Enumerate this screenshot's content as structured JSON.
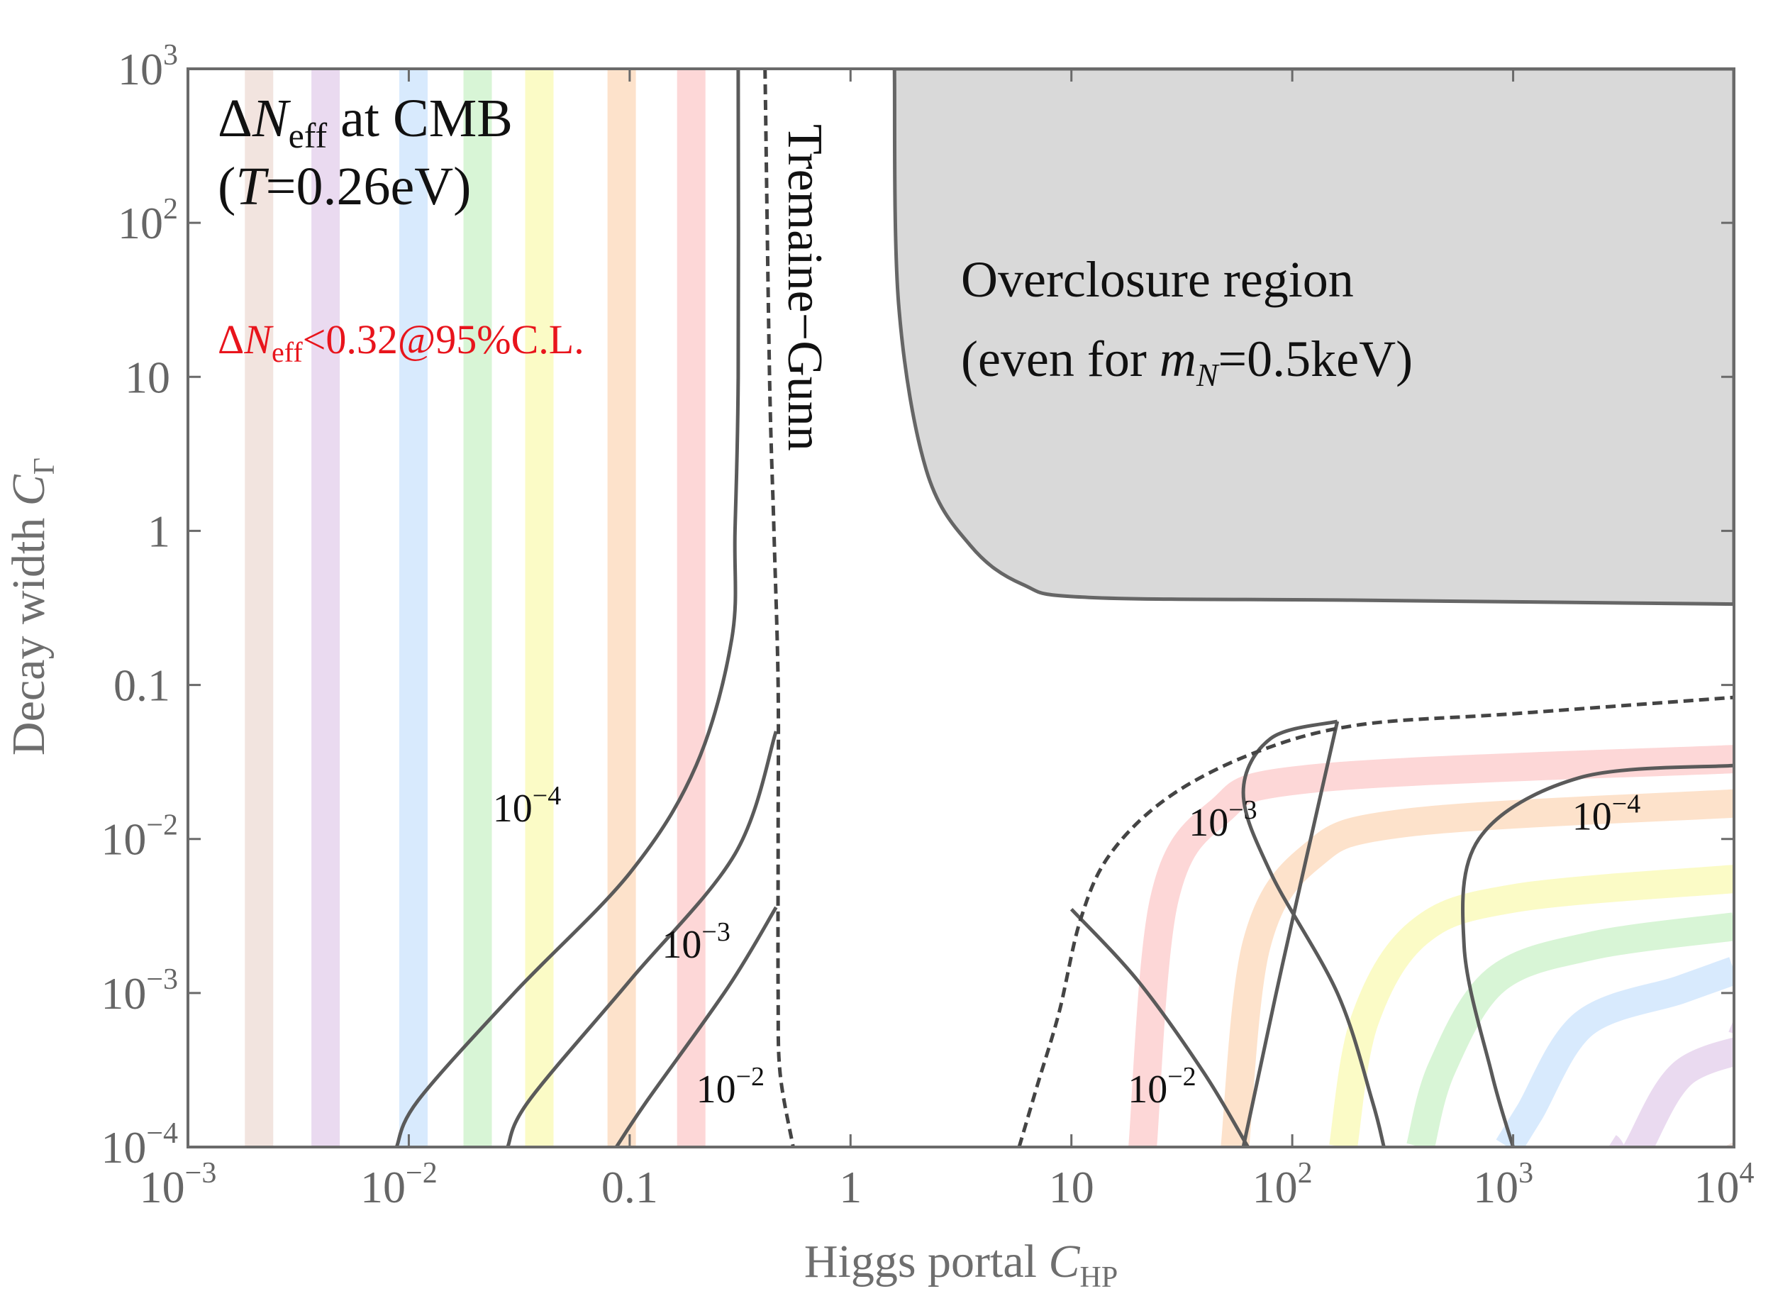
{
  "chart_data": {
    "type": "contour",
    "xlabel": {
      "text": "Higgs portal ",
      "italic": "C",
      "sub": "HP"
    },
    "ylabel": {
      "text": "Decay width ",
      "italic": "C",
      "sub": "Γ"
    },
    "x_scale": "log",
    "y_scale": "log",
    "xlim": [
      0.001,
      10000
    ],
    "ylim": [
      0.0001,
      1000
    ],
    "x_ticks": [
      {
        "value": 0.001,
        "base": "10",
        "exp": "−3"
      },
      {
        "value": 0.01,
        "base": "10",
        "exp": "−2"
      },
      {
        "value": 0.1,
        "base": "0.1",
        "exp": ""
      },
      {
        "value": 1,
        "base": "1",
        "exp": ""
      },
      {
        "value": 10,
        "base": "10",
        "exp": ""
      },
      {
        "value": 100,
        "base": "10",
        "exp": "2"
      },
      {
        "value": 1000,
        "base": "10",
        "exp": "3"
      },
      {
        "value": 10000,
        "base": "10",
        "exp": "4"
      }
    ],
    "y_ticks": [
      {
        "value": 0.0001,
        "base": "10",
        "exp": "−4"
      },
      {
        "value": 0.001,
        "base": "10",
        "exp": "−3"
      },
      {
        "value": 0.01,
        "base": "10",
        "exp": "−2"
      },
      {
        "value": 0.1,
        "base": "0.1",
        "exp": ""
      },
      {
        "value": 1,
        "base": "1",
        "exp": ""
      },
      {
        "value": 10,
        "base": "10",
        "exp": ""
      },
      {
        "value": 100,
        "base": "10",
        "exp": "2"
      },
      {
        "value": 1000,
        "base": "10",
        "exp": "3"
      }
    ],
    "annotations": {
      "title_line1": {
        "pre": "Δ",
        "italic": "N",
        "sub": "eff",
        "post": " at CMB"
      },
      "title_line2": {
        "pre": "(",
        "italic": "T",
        "post": "=0.26eV)"
      },
      "constraint": {
        "pre": "Δ",
        "italic": "N",
        "sub": "eff",
        "post": "<0.32@95%C.L.",
        "color": "#e8141c"
      },
      "tremaine_gunn": "Tremaine−Gunn",
      "overclosure_line1": "Overclosure region",
      "overclosure_line2": {
        "pre": "(even for ",
        "italic": "m",
        "sub": "N",
        "post": "=0.5keV)"
      }
    },
    "contour_labels": [
      {
        "base": "10",
        "exp": "−4",
        "x": 0.024,
        "y": 0.013
      },
      {
        "base": "10",
        "exp": "−3",
        "x": 0.14,
        "y": 0.0017
      },
      {
        "base": "10",
        "exp": "−2",
        "x": 0.2,
        "y": 0.000195
      },
      {
        "base": "10",
        "exp": "−3",
        "x": 34,
        "y": 0.0105
      },
      {
        "base": "10",
        "exp": "−4",
        "x": 1850,
        "y": 0.0115
      },
      {
        "base": "10",
        "exp": "−2",
        "x": 18,
        "y": 0.000195
      }
    ],
    "band_colors": [
      "#f2e4df",
      "#eadaf0",
      "#d8eafd",
      "#d8f5d6",
      "#fbfbc6",
      "#fde2cb",
      "#fdd7d7"
    ],
    "left_bands_x": [
      0.0021,
      0.0042,
      0.0105,
      0.0205,
      0.039,
      0.092,
      0.19
    ],
    "right_bands": [
      {
        "x_start": 9000,
        "y_end": 0.00045
      },
      {
        "x_start": 2700,
        "y_end": 0.00068
      },
      {
        "x_start": 950,
        "y_end": 0.0014
      },
      {
        "x_start": 380,
        "y_end": 0.0027
      },
      {
        "x_start": 170,
        "y_end": 0.0055
      },
      {
        "x_start": 55,
        "y_end": 0.017
      },
      {
        "x_start": 21,
        "y_end": 0.033
      }
    ],
    "overclosure_region": [
      [
        1.58,
        1000
      ],
      [
        1.65,
        30
      ],
      [
        2.2,
        2.5
      ],
      [
        3.5,
        0.8
      ],
      [
        6,
        0.45
      ],
      [
        12,
        0.37
      ],
      [
        200,
        0.355
      ],
      [
        10000,
        0.335
      ],
      [
        10000,
        1000
      ]
    ],
    "tremaine_gunn_left": [
      [
        0.41,
        1000
      ],
      [
        0.43,
        10
      ],
      [
        0.45,
        1
      ],
      [
        0.47,
        0.1
      ],
      [
        0.47,
        0.01
      ],
      [
        0.47,
        0.001
      ],
      [
        0.48,
        0.0003
      ],
      [
        0.55,
        0.0001
      ]
    ],
    "tremaine_gunn_right": [
      [
        5.8,
        0.0001
      ],
      [
        7,
        0.00025
      ],
      [
        8.8,
        0.00075
      ],
      [
        11,
        0.003
      ],
      [
        15,
        0.008
      ],
      [
        28,
        0.019
      ],
      [
        70,
        0.037
      ],
      [
        200,
        0.055
      ],
      [
        1000,
        0.065
      ],
      [
        10000,
        0.083
      ]
    ],
    "contours": [
      {
        "level": "1e-4",
        "side": "left",
        "points": [
          [
            0.0088,
            0.0001
          ],
          [
            0.011,
            0.0002
          ],
          [
            0.03,
            0.001
          ],
          [
            0.1,
            0.006
          ],
          [
            0.2,
            0.03
          ],
          [
            0.29,
            0.2
          ],
          [
            0.3,
            1
          ],
          [
            0.31,
            10
          ],
          [
            0.31,
            1000
          ]
        ]
      },
      {
        "level": "1e-3",
        "side": "left",
        "points": [
          [
            0.028,
            0.0001
          ],
          [
            0.035,
            0.0002
          ],
          [
            0.1,
            0.0012
          ],
          [
            0.3,
            0.008
          ],
          [
            0.46,
            0.05
          ]
        ]
      },
      {
        "level": "1e-2",
        "side": "left",
        "points": [
          [
            0.087,
            0.0001
          ],
          [
            0.12,
            0.0002
          ],
          [
            0.28,
            0.0011
          ],
          [
            0.46,
            0.0036
          ]
        ]
      },
      {
        "level": "1e-2",
        "side": "right",
        "points": [
          [
            10,
            0.0035
          ],
          [
            20,
            0.0012
          ],
          [
            40,
            0.0003
          ],
          [
            63,
            0.0001
          ]
        ]
      },
      {
        "level": "1e-3",
        "side": "right",
        "points": [
          [
            60,
            0.0001
          ],
          [
            90,
            0.0015
          ],
          [
            160,
            0.058
          ]
        ],
        "points_lower": [
          [
            260,
            0.0001
          ],
          [
            230,
            0.0002
          ],
          [
            160,
            0.001
          ],
          [
            80,
            0.006
          ],
          [
            60,
            0.02
          ],
          [
            80,
            0.045
          ],
          [
            160,
            0.058
          ]
        ]
      },
      {
        "level": "1e-4",
        "side": "right",
        "points": [
          [
            1000,
            0.0001
          ],
          [
            800,
            0.0003
          ],
          [
            600,
            0.002
          ],
          [
            700,
            0.01
          ],
          [
            2000,
            0.025
          ],
          [
            10000,
            0.03
          ]
        ]
      }
    ]
  }
}
